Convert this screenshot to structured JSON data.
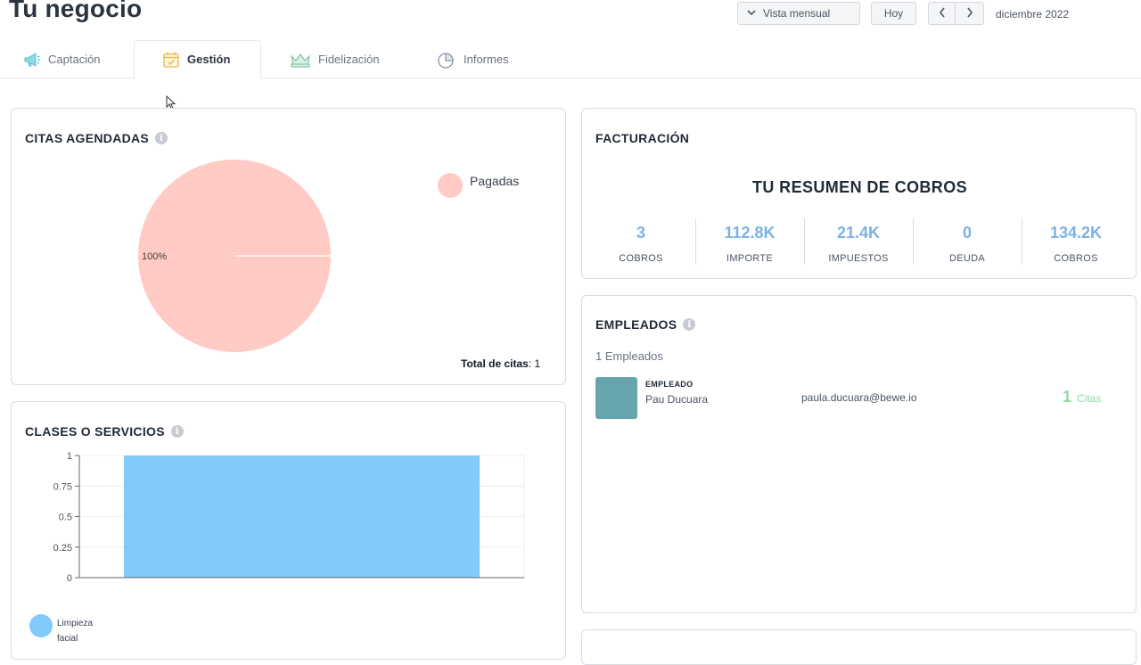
{
  "header": {
    "title": "Tu negocio",
    "view_select": "Vista mensual",
    "today": "Hoy",
    "month": "diciembre 2022"
  },
  "tabs": [
    {
      "label": "Captación",
      "icon": "megaphone-icon"
    },
    {
      "label": "Gestión",
      "icon": "calendar-check-icon",
      "active": true
    },
    {
      "label": "Fidelización",
      "icon": "crown-icon"
    },
    {
      "label": "Informes",
      "icon": "pie-chart-icon"
    }
  ],
  "colors": {
    "pie": "#ffcbc4",
    "bar": "#82c9fc",
    "accent": "#7bb2e6",
    "green": "#8fd9a8",
    "avatar": "#66a5ad"
  },
  "citas": {
    "title": "CITAS AGENDADAS",
    "legend": "Pagadas",
    "pie_label": "100%",
    "total_label": "Total de citas",
    "total_value": "1",
    "chart_data": {
      "type": "pie",
      "categories": [
        "Pagadas"
      ],
      "values": [
        1
      ]
    }
  },
  "servicios": {
    "title": "CLASES O SERVICIOS",
    "legend_line1": "Limpieza",
    "legend_line2": "facial",
    "chart_data": {
      "type": "bar",
      "categories": [
        "Limpieza facial"
      ],
      "values": [
        1
      ],
      "ylim": [
        0,
        1
      ],
      "yticks": [
        "0",
        "0.25",
        "0.5",
        "0.75",
        "1"
      ],
      "grid": true
    }
  },
  "facturacion": {
    "title": "FACTURACIÓN",
    "subtitle": "TU RESUMEN DE COBROS",
    "stats": [
      {
        "value": "3",
        "label": "COBROS"
      },
      {
        "value": "112.8K",
        "label": "IMPORTE"
      },
      {
        "value": "21.4K",
        "label": "IMPUESTOS"
      },
      {
        "value": "0",
        "label": "DEUDA"
      },
      {
        "value": "134.2K",
        "label": "COBROS"
      }
    ]
  },
  "empleados": {
    "title": "EMPLEADOS",
    "count_label": "1 Empleados",
    "rows": [
      {
        "role": "EMPLEADO",
        "name": "Pau Ducuara",
        "email": "paula.ducuara@bewe.io",
        "citas_value": "1",
        "citas_label": "Citas"
      }
    ]
  }
}
